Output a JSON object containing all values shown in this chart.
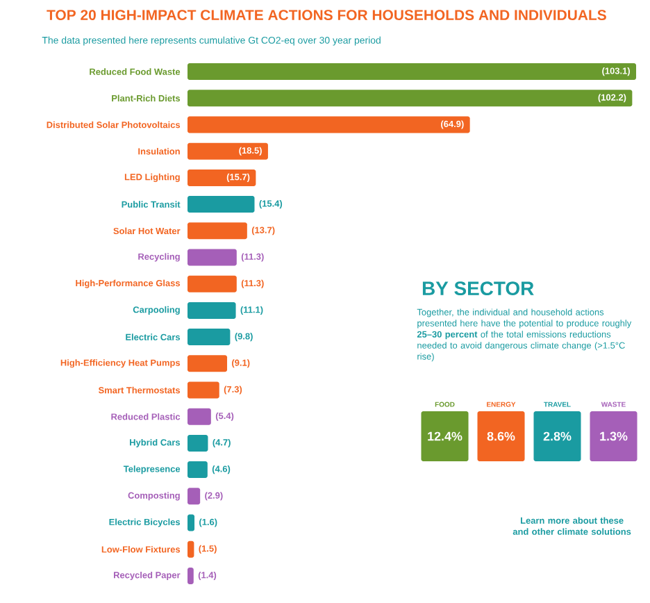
{
  "chart_data": [
    {
      "type": "bar",
      "orientation": "horizontal",
      "title": "TOP 20 HIGH-IMPACT CLIMATE ACTIONS FOR HOUSEHOLDS AND INDIVIDUALS",
      "subtitle": "The data presented here represents cumulative Gt CO2-eq over 30 year period",
      "categories": [
        "Reduced Food Waste",
        "Plant-Rich Diets",
        "Distributed Solar Photovoltaics",
        "Insulation",
        "LED Lighting",
        "Public Transit",
        "Solar Hot Water",
        "Recycling",
        "High-Performance Glass",
        "Carpooling",
        "Electric Cars",
        "High-Efficiency Heat Pumps",
        "Smart Thermostats",
        "Reduced Plastic",
        "Hybrid Cars",
        "Telepresence",
        "Composting",
        "Electric Bicycles",
        "Low-Flow Fixtures",
        "Recycled Paper"
      ],
      "value_labels": [
        "(103.1)",
        "(102.2)",
        "(64.9)",
        "(18.5)",
        "(15.7)",
        "(15.4)",
        "(13.7)",
        "(11.3)",
        "(11.3)",
        "(11.1)",
        "(9.8)",
        "(9.1)",
        "(7.3)",
        "(5.4)",
        "(4.7)",
        "(4.6)",
        "(2.9)",
        "(1.6)",
        "(1.5)",
        "(1.4)"
      ],
      "values": [
        103.1,
        102.2,
        64.9,
        18.5,
        15.7,
        15.4,
        13.7,
        11.3,
        11.3,
        11.1,
        9.8,
        9.1,
        7.3,
        5.4,
        4.7,
        4.6,
        2.9,
        1.6,
        1.5,
        1.4
      ],
      "colors": [
        "#6a9a2e",
        "#6a9a2e",
        "#f26522",
        "#f26522",
        "#f26522",
        "#1a9ba1",
        "#f26522",
        "#a55fb8",
        "#f26522",
        "#1a9ba1",
        "#1a9ba1",
        "#f26522",
        "#f26522",
        "#a55fb8",
        "#1a9ba1",
        "#1a9ba1",
        "#a55fb8",
        "#1a9ba1",
        "#f26522",
        "#a55fb8"
      ]
    },
    {
      "type": "other",
      "title": "BY SECTOR",
      "subtitle": "Together, the individual and household actions presented here have the potential to produce roughly **25–30 percent** of the total emissions reductions needed to avoid dangerous climate change (>1.5°C rise)",
      "categories": [
        "FOOD",
        "ENERGY",
        "TRAVEL",
        "WASTE"
      ],
      "value_labels": [
        "12.4%",
        "8.6%",
        "2.8%",
        "1.3%"
      ],
      "colors": [
        "#6a9a2e",
        "#f26522",
        "#1a9ba1",
        "#a55fb8"
      ],
      "annotations": [
        "Learn more about these and other climate solutions"
      ]
    }
  ]
}
